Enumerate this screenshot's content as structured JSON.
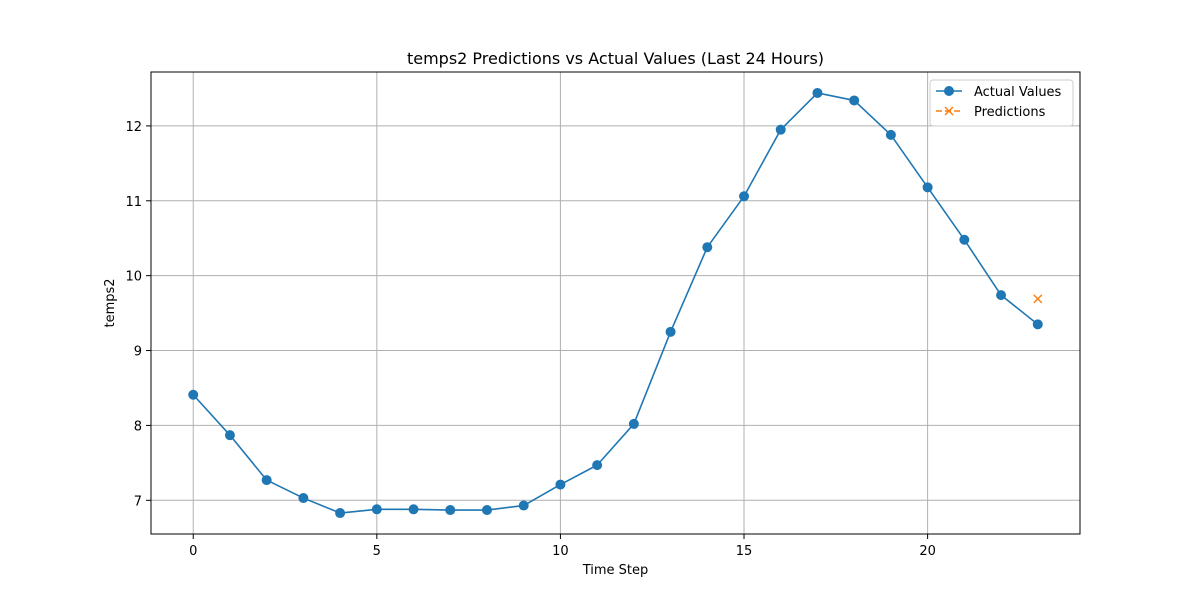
{
  "chart_data": {
    "type": "line",
    "title": "temps2 Predictions vs Actual Values (Last 24 Hours)",
    "xlabel": "Time Step",
    "ylabel": "temps2",
    "xlim": [
      -1.15,
      24.15
    ],
    "ylim": [
      6.55,
      12.72
    ],
    "xticks": [
      0,
      5,
      10,
      15,
      20
    ],
    "yticks": [
      7,
      8,
      9,
      10,
      11,
      12
    ],
    "xtick_labels": [
      "0",
      "5",
      "10",
      "15",
      "20"
    ],
    "ytick_labels": [
      "7",
      "8",
      "9",
      "10",
      "11",
      "12"
    ],
    "grid": true,
    "legend_position": "top-right",
    "series": [
      {
        "name": "Actual Values",
        "color": "#1f77b4",
        "marker": "circle",
        "line_style": "solid",
        "x": [
          0,
          1,
          2,
          3,
          4,
          5,
          6,
          7,
          8,
          9,
          10,
          11,
          12,
          13,
          14,
          15,
          16,
          17,
          18,
          19,
          20,
          21,
          22,
          23
        ],
        "values": [
          8.41,
          7.87,
          7.27,
          7.03,
          6.83,
          6.88,
          6.88,
          6.87,
          6.87,
          6.93,
          7.21,
          7.47,
          8.02,
          9.25,
          10.38,
          11.06,
          11.95,
          12.44,
          12.34,
          11.88,
          11.18,
          10.48,
          9.74,
          9.35
        ]
      },
      {
        "name": "Predictions",
        "color": "#ff7f0e",
        "marker": "x",
        "line_style": "dashed",
        "x": [
          23
        ],
        "values": [
          9.69
        ]
      }
    ]
  }
}
